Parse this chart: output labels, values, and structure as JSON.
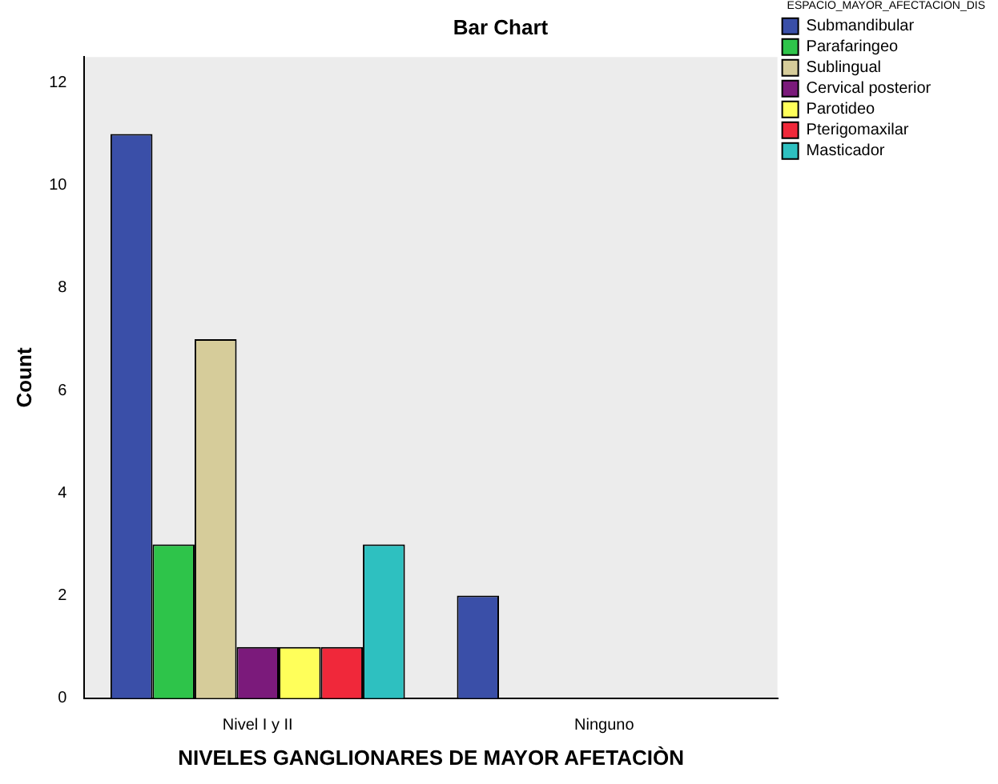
{
  "chart_data": {
    "type": "bar",
    "title": "Bar Chart",
    "xlabel": "NIVELES GANGLIONARES DE MAYOR AFETACIÒN",
    "ylabel": "Count",
    "legend_title": "ESPACIO_MAYOR_AFECTACION_DIS",
    "categories": [
      "Nivel I y II",
      "Ninguno"
    ],
    "series": [
      {
        "name": "Submandibular",
        "color": "#3a4fa8",
        "values": [
          11,
          2
        ]
      },
      {
        "name": "Parafaringeo",
        "color": "#2ec44a",
        "values": [
          3,
          null
        ]
      },
      {
        "name": "Sublingual",
        "color": "#d6cc9a",
        "values": [
          7,
          null
        ]
      },
      {
        "name": "Cervical posterior",
        "color": "#7b1a7b",
        "values": [
          1,
          null
        ]
      },
      {
        "name": "Parotideo",
        "color": "#ffff5a",
        "values": [
          1,
          null
        ]
      },
      {
        "name": "Pterigomaxilar",
        "color": "#f0283a",
        "values": [
          1,
          null
        ]
      },
      {
        "name": "Masticador",
        "color": "#2ec0c0",
        "values": [
          3,
          null
        ]
      }
    ],
    "ylim": [
      0,
      12.5
    ],
    "yticks": [
      0,
      2,
      4,
      6,
      8,
      10,
      12
    ],
    "grid": false,
    "legend": "top right"
  }
}
